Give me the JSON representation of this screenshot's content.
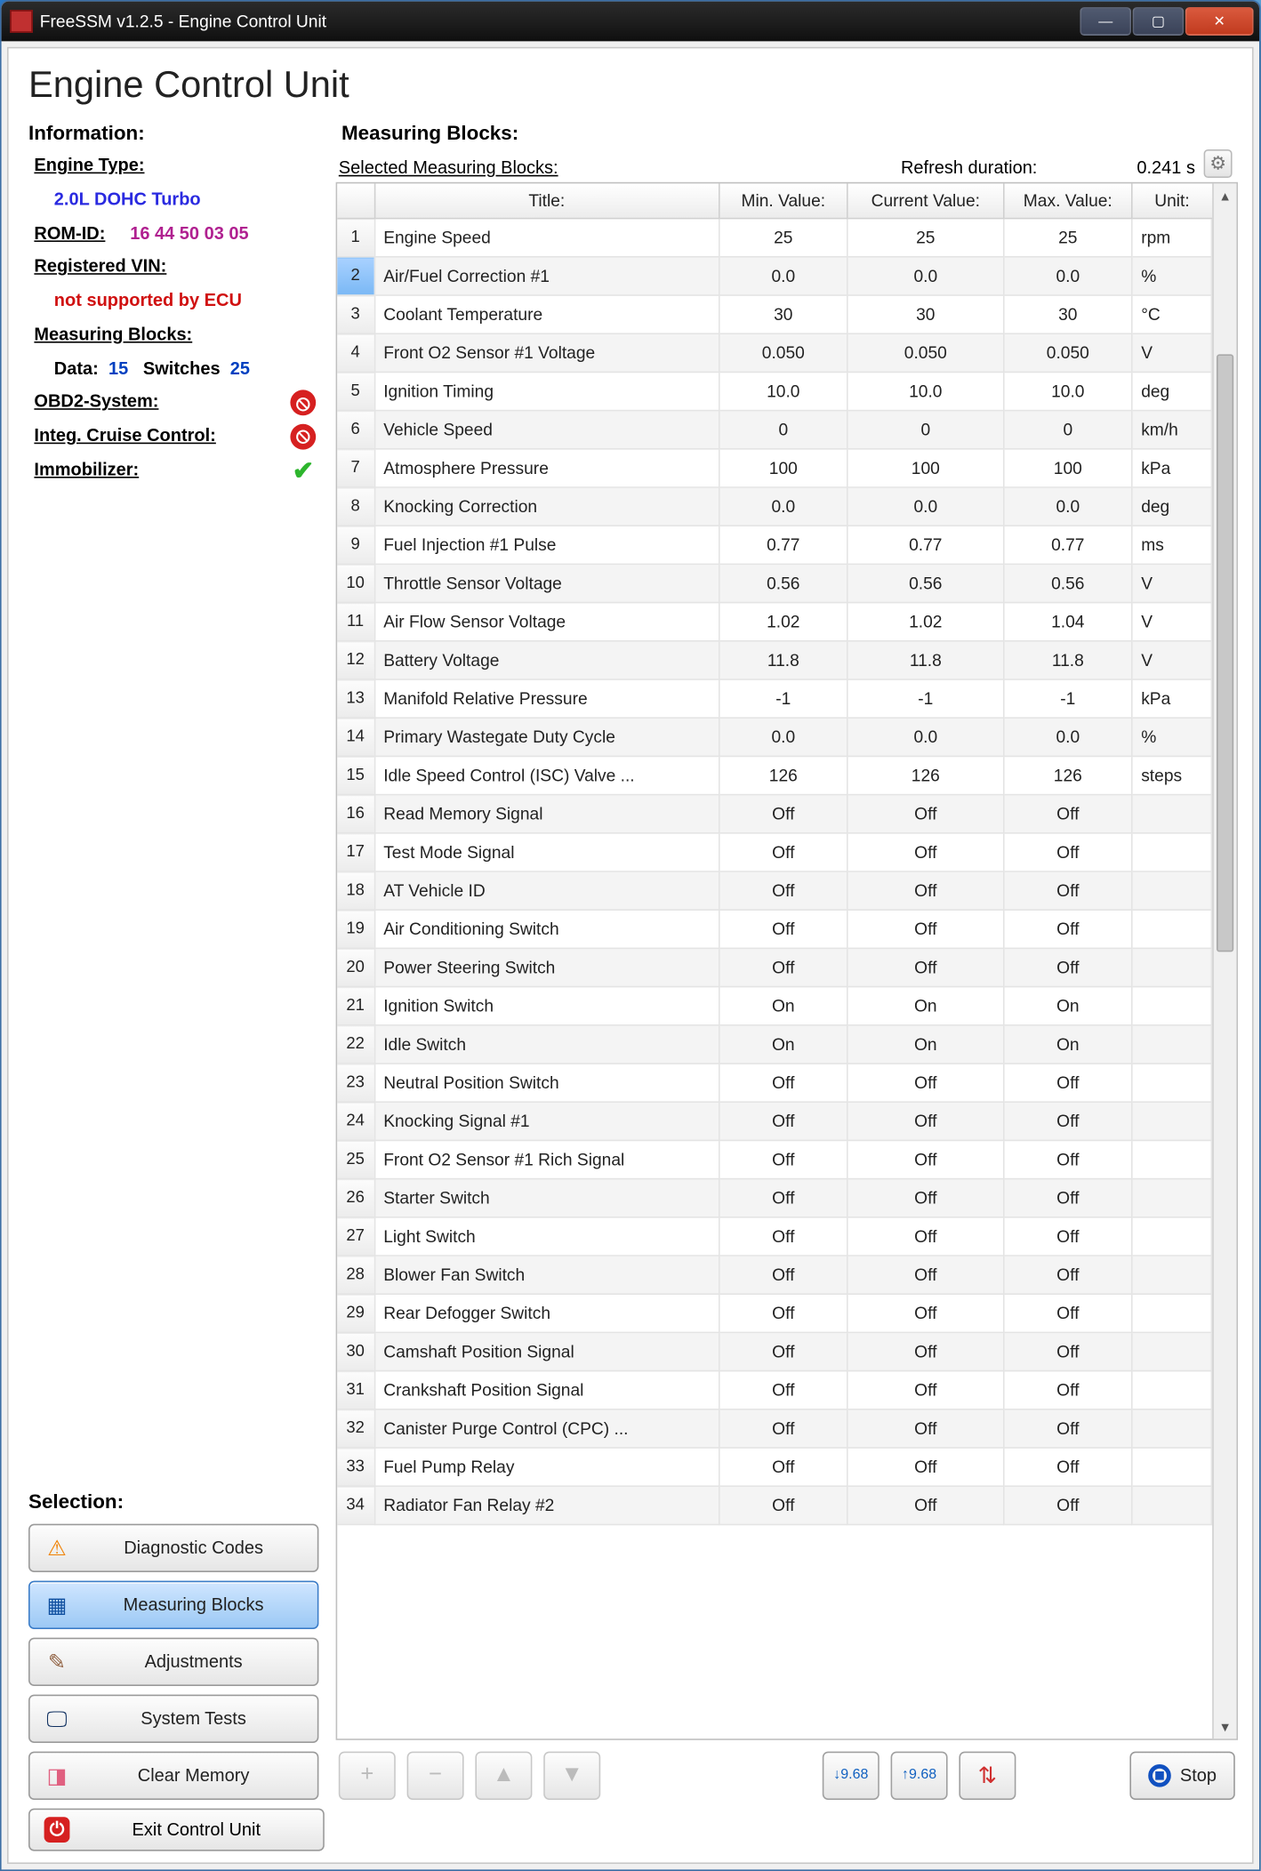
{
  "window": {
    "title": "FreeSSM v1.2.5 - Engine Control Unit"
  },
  "page": {
    "heading": "Engine Control Unit"
  },
  "info": {
    "section_label": "Information:",
    "engine_type_label": "Engine Type:",
    "engine_type_value": "2.0L DOHC Turbo",
    "rom_id_label": "ROM-ID:",
    "rom_id_value": "16 44 50 03 05",
    "vin_label": "Registered VIN:",
    "vin_value": "not supported by ECU",
    "mb_label": "Measuring Blocks:",
    "mb_data_label": "Data:",
    "mb_data_value": "15",
    "mb_sw_label": "Switches",
    "mb_sw_value": "25",
    "obd2_label": "OBD2-System:",
    "cruise_label": "Integ. Cruise Control:",
    "immob_label": "Immobilizer:"
  },
  "selection": {
    "section_label": "Selection:",
    "buttons": [
      {
        "label": "Diagnostic Codes",
        "icon": "⚠",
        "cls": "ic-diag",
        "active": false
      },
      {
        "label": "Measuring Blocks",
        "icon": "▦",
        "cls": "ic-meas",
        "active": true
      },
      {
        "label": "Adjustments",
        "icon": "✎",
        "cls": "ic-adj",
        "active": false
      },
      {
        "label": "System Tests",
        "icon": "🖵",
        "cls": "ic-sys",
        "active": false
      },
      {
        "label": "Clear Memory",
        "icon": "◨",
        "cls": "ic-clear",
        "active": false
      }
    ]
  },
  "measuring": {
    "section_label": "Measuring Blocks:",
    "selected_label": "Selected Measuring Blocks:",
    "refresh_label": "Refresh duration:",
    "refresh_value": "0.241 s",
    "columns": [
      "",
      "Title:",
      "Min. Value:",
      "Current Value:",
      "Max. Value:",
      "Unit:"
    ],
    "col_widths": [
      "26px",
      "auto",
      "90px",
      "110px",
      "90px",
      "56px"
    ],
    "selected_row_index": 2,
    "rows": [
      {
        "n": 1,
        "title": "Engine Speed",
        "min": "25",
        "cur": "25",
        "max": "25",
        "unit": "rpm"
      },
      {
        "n": 2,
        "title": "Air/Fuel Correction #1",
        "min": "0.0",
        "cur": "0.0",
        "max": "0.0",
        "unit": "%"
      },
      {
        "n": 3,
        "title": "Coolant Temperature",
        "min": "30",
        "cur": "30",
        "max": "30",
        "unit": "°C"
      },
      {
        "n": 4,
        "title": "Front O2 Sensor #1 Voltage",
        "min": "0.050",
        "cur": "0.050",
        "max": "0.050",
        "unit": "V"
      },
      {
        "n": 5,
        "title": "Ignition Timing",
        "min": "10.0",
        "cur": "10.0",
        "max": "10.0",
        "unit": "deg"
      },
      {
        "n": 6,
        "title": "Vehicle Speed",
        "min": "0",
        "cur": "0",
        "max": "0",
        "unit": "km/h"
      },
      {
        "n": 7,
        "title": "Atmosphere Pressure",
        "min": "100",
        "cur": "100",
        "max": "100",
        "unit": "kPa"
      },
      {
        "n": 8,
        "title": "Knocking Correction",
        "min": "0.0",
        "cur": "0.0",
        "max": "0.0",
        "unit": "deg"
      },
      {
        "n": 9,
        "title": "Fuel Injection #1 Pulse",
        "min": "0.77",
        "cur": "0.77",
        "max": "0.77",
        "unit": "ms"
      },
      {
        "n": 10,
        "title": "Throttle Sensor Voltage",
        "min": "0.56",
        "cur": "0.56",
        "max": "0.56",
        "unit": "V"
      },
      {
        "n": 11,
        "title": "Air Flow Sensor Voltage",
        "min": "1.02",
        "cur": "1.02",
        "max": "1.04",
        "unit": "V"
      },
      {
        "n": 12,
        "title": "Battery Voltage",
        "min": "11.8",
        "cur": "11.8",
        "max": "11.8",
        "unit": "V"
      },
      {
        "n": 13,
        "title": "Manifold Relative Pressure",
        "min": "-1",
        "cur": "-1",
        "max": "-1",
        "unit": "kPa"
      },
      {
        "n": 14,
        "title": "Primary Wastegate Duty Cycle",
        "min": "0.0",
        "cur": "0.0",
        "max": "0.0",
        "unit": "%"
      },
      {
        "n": 15,
        "title": "Idle Speed Control (ISC) Valve ...",
        "min": "126",
        "cur": "126",
        "max": "126",
        "unit": "steps"
      },
      {
        "n": 16,
        "title": "Read Memory Signal",
        "min": "Off",
        "cur": "Off",
        "max": "Off",
        "unit": ""
      },
      {
        "n": 17,
        "title": "Test Mode Signal",
        "min": "Off",
        "cur": "Off",
        "max": "Off",
        "unit": ""
      },
      {
        "n": 18,
        "title": "AT Vehicle ID",
        "min": "Off",
        "cur": "Off",
        "max": "Off",
        "unit": ""
      },
      {
        "n": 19,
        "title": "Air Conditioning Switch",
        "min": "Off",
        "cur": "Off",
        "max": "Off",
        "unit": ""
      },
      {
        "n": 20,
        "title": "Power Steering Switch",
        "min": "Off",
        "cur": "Off",
        "max": "Off",
        "unit": ""
      },
      {
        "n": 21,
        "title": "Ignition Switch",
        "min": "On",
        "cur": "On",
        "max": "On",
        "unit": ""
      },
      {
        "n": 22,
        "title": "Idle Switch",
        "min": "On",
        "cur": "On",
        "max": "On",
        "unit": ""
      },
      {
        "n": 23,
        "title": "Neutral Position Switch",
        "min": "Off",
        "cur": "Off",
        "max": "Off",
        "unit": ""
      },
      {
        "n": 24,
        "title": "Knocking Signal #1",
        "min": "Off",
        "cur": "Off",
        "max": "Off",
        "unit": ""
      },
      {
        "n": 25,
        "title": "Front O2 Sensor #1 Rich Signal",
        "min": "Off",
        "cur": "Off",
        "max": "Off",
        "unit": ""
      },
      {
        "n": 26,
        "title": "Starter Switch",
        "min": "Off",
        "cur": "Off",
        "max": "Off",
        "unit": ""
      },
      {
        "n": 27,
        "title": "Light Switch",
        "min": "Off",
        "cur": "Off",
        "max": "Off",
        "unit": ""
      },
      {
        "n": 28,
        "title": "Blower Fan Switch",
        "min": "Off",
        "cur": "Off",
        "max": "Off",
        "unit": ""
      },
      {
        "n": 29,
        "title": "Rear Defogger Switch",
        "min": "Off",
        "cur": "Off",
        "max": "Off",
        "unit": ""
      },
      {
        "n": 30,
        "title": "Camshaft Position Signal",
        "min": "Off",
        "cur": "Off",
        "max": "Off",
        "unit": ""
      },
      {
        "n": 31,
        "title": "Crankshaft Position Signal",
        "min": "Off",
        "cur": "Off",
        "max": "Off",
        "unit": ""
      },
      {
        "n": 32,
        "title": "Canister Purge Control (CPC) ...",
        "min": "Off",
        "cur": "Off",
        "max": "Off",
        "unit": ""
      },
      {
        "n": 33,
        "title": "Fuel Pump Relay",
        "min": "Off",
        "cur": "Off",
        "max": "Off",
        "unit": ""
      },
      {
        "n": 34,
        "title": "Radiator Fan Relay #2",
        "min": "Off",
        "cur": "Off",
        "max": "Off",
        "unit": ""
      }
    ]
  },
  "toolbar": {
    "add": "+",
    "remove": "−",
    "up": "▲",
    "down": "▼",
    "save_a": "↓9.68",
    "save_b": "↑9.68",
    "save_c": "⇅",
    "stop_label": "Stop"
  },
  "footer": {
    "exit_label": "Exit Control Unit"
  }
}
